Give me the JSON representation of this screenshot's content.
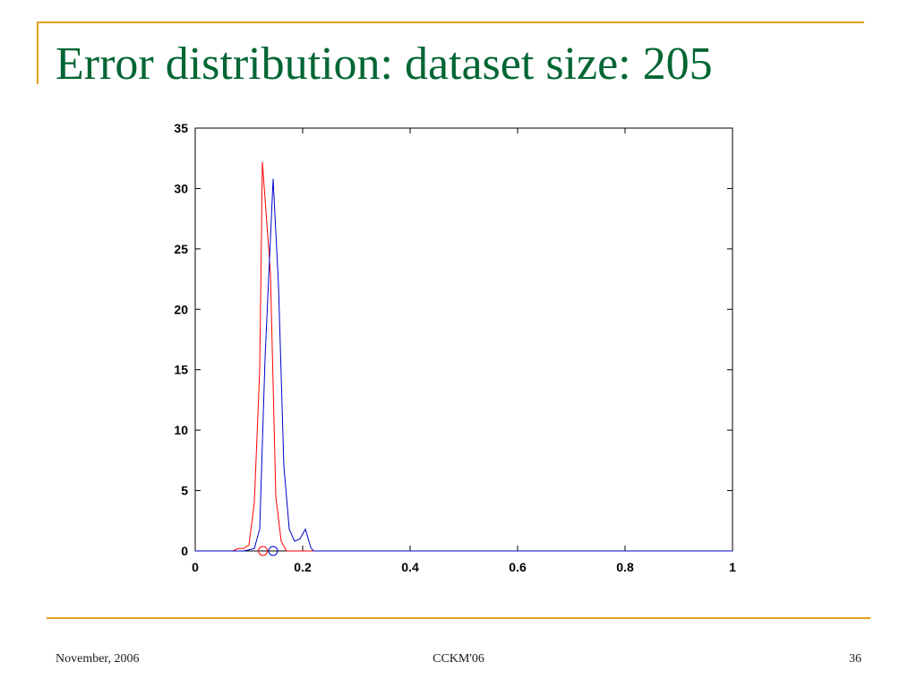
{
  "slide": {
    "title": "Error distribution: dataset size: 205",
    "footer_left": "November, 2006",
    "footer_center": "CCKM'06",
    "footer_right": "36",
    "accent_color": "#e0a21a",
    "title_color": "#006633"
  },
  "chart_data": {
    "type": "line",
    "title": "",
    "xlabel": "",
    "ylabel": "",
    "xlim": [
      0,
      1
    ],
    "ylim": [
      0,
      35
    ],
    "xticks": [
      0,
      0.2,
      0.4,
      0.6,
      0.8,
      1
    ],
    "xtick_labels": [
      "0",
      "0.2",
      "0.4",
      "0.6",
      "0.8",
      "1"
    ],
    "yticks": [
      0,
      5,
      10,
      15,
      20,
      25,
      30,
      35
    ],
    "ytick_labels": [
      "0",
      "5",
      "10",
      "15",
      "20",
      "25",
      "30",
      "35"
    ],
    "grid": false,
    "legend": "none",
    "series": [
      {
        "color": "#ff0000",
        "points": [
          [
            0,
            0
          ],
          [
            0.07,
            0
          ],
          [
            0.08,
            0.2
          ],
          [
            0.09,
            0.2
          ],
          [
            0.1,
            0.5
          ],
          [
            0.11,
            4
          ],
          [
            0.12,
            15
          ],
          [
            0.125,
            32.2
          ],
          [
            0.14,
            23
          ],
          [
            0.15,
            4.5
          ],
          [
            0.16,
            0.8
          ],
          [
            0.17,
            0
          ],
          [
            1,
            0
          ]
        ],
        "marker_x": 0.126
      },
      {
        "color": "#0000cc",
        "points": [
          [
            0,
            0
          ],
          [
            0.09,
            0
          ],
          [
            0.1,
            0.1
          ],
          [
            0.11,
            0.2
          ],
          [
            0.12,
            1.8
          ],
          [
            0.13,
            16
          ],
          [
            0.145,
            30.8
          ],
          [
            0.155,
            22
          ],
          [
            0.165,
            7
          ],
          [
            0.175,
            1.8
          ],
          [
            0.185,
            0.8
          ],
          [
            0.195,
            1.0
          ],
          [
            0.205,
            1.8
          ],
          [
            0.215,
            0.3
          ],
          [
            0.22,
            0
          ],
          [
            1,
            0
          ]
        ],
        "marker_x": 0.145
      }
    ]
  }
}
